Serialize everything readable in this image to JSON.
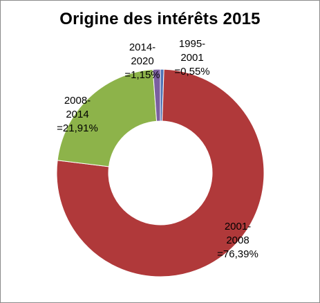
{
  "chart_data": {
    "type": "pie",
    "title": "Origine des intérêts 2015",
    "categories": [
      "1995-2001",
      "2001-2008",
      "2008-2014",
      "2014-2020"
    ],
    "values": [
      0.55,
      76.39,
      21.91,
      1.15
    ],
    "unit": "%",
    "colors": [
      "#4f74b6",
      "#b0393a",
      "#8db34a",
      "#7a5fa0"
    ],
    "data_labels": [
      [
        "1995-",
        "2001",
        "=0,55%"
      ],
      [
        "2001-",
        "2008",
        "=76,39%"
      ],
      [
        "2008-",
        "2014",
        "=21,91%"
      ],
      [
        "2014-",
        "2020",
        "=1,15%"
      ]
    ],
    "legend": false,
    "grid": false,
    "style": "doughnut"
  }
}
